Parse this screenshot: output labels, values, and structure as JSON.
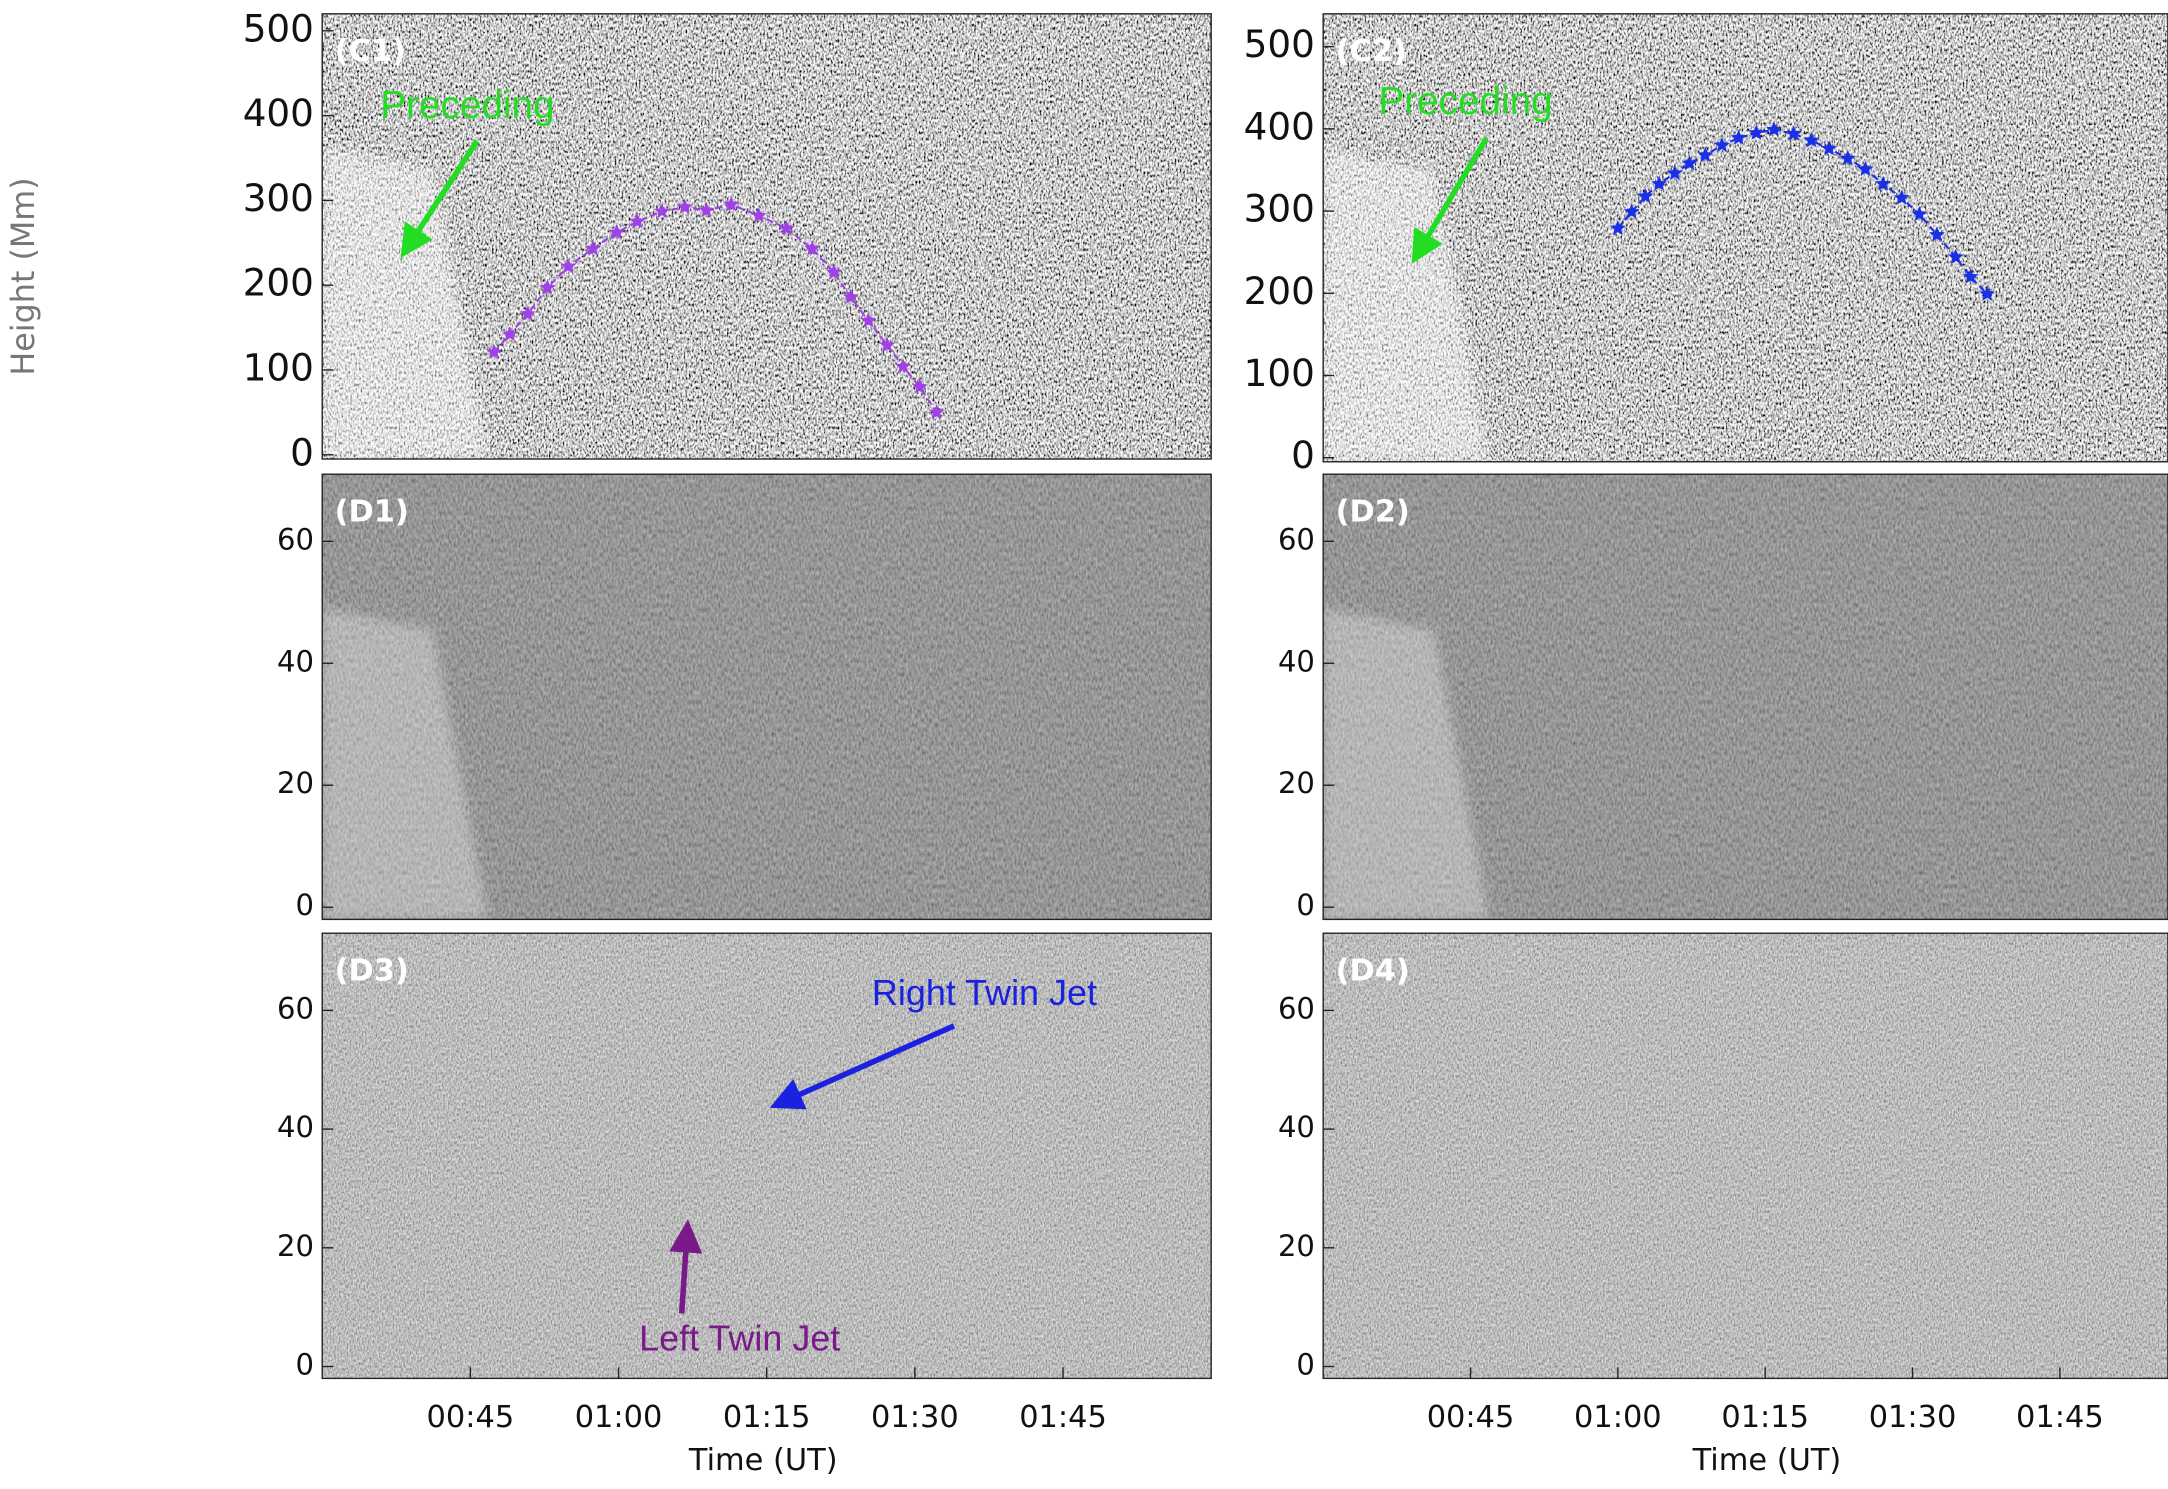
{
  "y_label": "Height (Mm)",
  "chart_data": [
    {
      "type": "scatter",
      "panel_label": "(C1)",
      "xlim": [
        30,
        120
      ],
      "ylim": [
        -5,
        520
      ],
      "yticks": [
        0,
        100,
        200,
        300,
        400,
        500
      ],
      "annotations": [
        {
          "text": "Preceding",
          "color": "#22dd22"
        }
      ],
      "series": [
        {
          "color": "#a040e8",
          "x": [
            47.4,
            49.0,
            50.8,
            52.8,
            54.9,
            57.4,
            59.8,
            61.9,
            64.4,
            66.7,
            68.9,
            71.4,
            74.2,
            77.0,
            79.6,
            81.8,
            83.5,
            85.3,
            87.2,
            88.8,
            90.5,
            92.2
          ],
          "values": [
            121,
            142,
            166,
            197,
            222,
            243,
            262,
            275,
            287,
            292,
            288,
            295,
            282,
            267,
            243,
            215,
            186,
            158,
            129,
            104,
            80,
            50
          ]
        }
      ]
    },
    {
      "type": "scatter",
      "panel_label": "(C2)",
      "xlim": [
        30,
        116
      ],
      "ylim": [
        -5,
        540
      ],
      "yticks": [
        0,
        100,
        200,
        300,
        400,
        500
      ],
      "annotations": [
        {
          "text": "Preceding",
          "color": "#22dd22"
        }
      ],
      "series": [
        {
          "color": "#1a30e8",
          "x": [
            60.0,
            61.4,
            62.8,
            64.2,
            65.8,
            67.3,
            68.9,
            70.6,
            72.3,
            74.1,
            75.9,
            77.9,
            79.7,
            81.5,
            83.4,
            85.2,
            87.0,
            88.9,
            90.7,
            92.5,
            94.4,
            95.9,
            97.6
          ],
          "values": [
            279,
            299,
            318,
            333,
            346,
            358,
            368,
            380,
            389,
            395,
            399,
            394,
            386,
            376,
            364,
            351,
            333,
            316,
            296,
            271,
            244,
            220,
            199
          ]
        }
      ]
    },
    {
      "type": "image",
      "panel_label": "(D1)",
      "xlim": [
        30,
        120
      ],
      "ylim": [
        -2,
        71
      ],
      "yticks": [
        0,
        20,
        40,
        60
      ]
    },
    {
      "type": "image",
      "panel_label": "(D2)",
      "xlim": [
        30,
        116
      ],
      "ylim": [
        -2,
        71
      ],
      "yticks": [
        0,
        20,
        40,
        60
      ]
    },
    {
      "type": "image",
      "panel_label": "(D3)",
      "xlim": [
        30,
        120
      ],
      "ylim": [
        -2,
        73
      ],
      "yticks": [
        0,
        20,
        40,
        60
      ],
      "xticks": [
        {
          "value": 45,
          "label": "00:45"
        },
        {
          "value": 60,
          "label": "01:00"
        },
        {
          "value": 75,
          "label": "01:15"
        },
        {
          "value": 90,
          "label": "01:30"
        },
        {
          "value": 105,
          "label": "01:45"
        }
      ],
      "x_label": "Time (UT)",
      "annotations": [
        {
          "text": "Right Twin Jet",
          "color": "#1a22e0"
        },
        {
          "text": "Left Twin Jet",
          "color": "#7a1a8a"
        }
      ]
    },
    {
      "type": "image",
      "panel_label": "(D4)",
      "xlim": [
        30,
        116
      ],
      "ylim": [
        -2,
        73
      ],
      "yticks": [
        0,
        20,
        40,
        60
      ],
      "xticks": [
        {
          "value": 45,
          "label": "00:45"
        },
        {
          "value": 60,
          "label": "01:00"
        },
        {
          "value": 75,
          "label": "01:15"
        },
        {
          "value": 90,
          "label": "01:30"
        },
        {
          "value": 105,
          "label": "01:45"
        }
      ],
      "x_label": "Time (UT)"
    }
  ]
}
